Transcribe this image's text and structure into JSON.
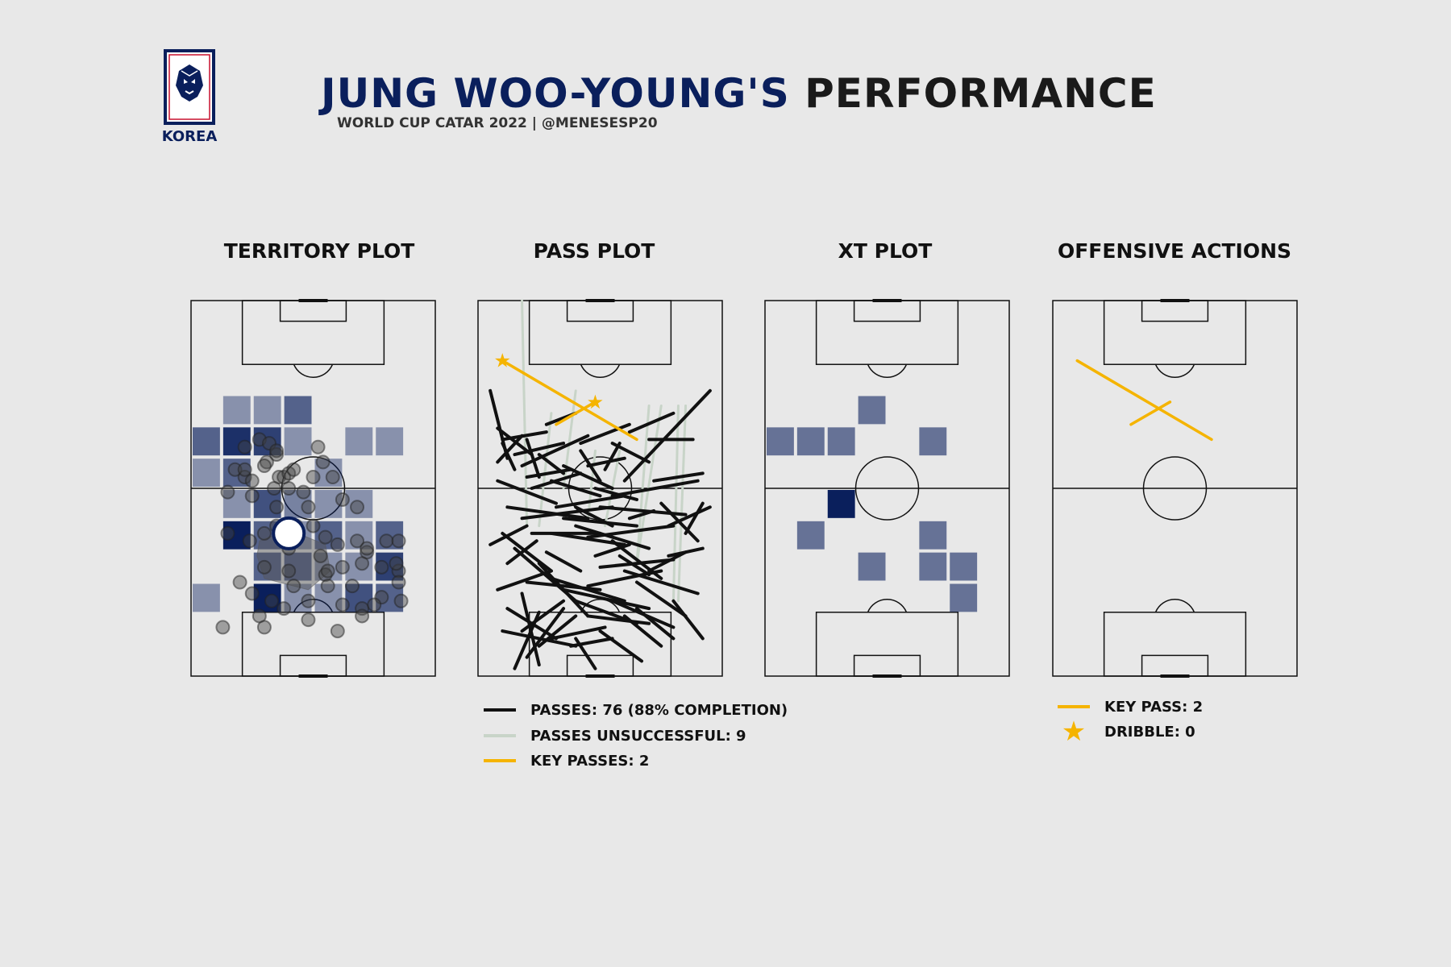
{
  "header": {
    "logo_text": "KOREA",
    "title_name": "JUNG WOO-YOUNG'S",
    "title_rest": "PERFORMANCE",
    "subtitle": "WORLD CUP CATAR 2022 | @MENESESP20"
  },
  "colors": {
    "navy": "#0a1f5c",
    "pass_complete": "#111111",
    "pass_unsuccessful": "#c8d4c8",
    "key_pass": "#f5b400",
    "background": "#e8e8e8"
  },
  "panels": {
    "territory_title": "TERRITORY PLOT",
    "pass_title": "PASS PLOT",
    "xt_title": "XT PLOT",
    "offensive_title": "OFFENSIVE ACTIONS"
  },
  "legend_pass": {
    "passes": "PASSES: 76 (88% COMPLETION)",
    "unsuccessful": "PASSES UNSUCCESSFUL: 9",
    "key_passes": "KEY PASSES: 2"
  },
  "legend_offensive": {
    "key_pass": "KEY PASS: 2",
    "dribble": "DRIBBLE: 0"
  },
  "chart_data": [
    {
      "type": "heatmap",
      "title": "TERRITORY PLOT",
      "grid": "8 cols x 12 rows (attacking toward top)",
      "cells": [
        {
          "col": 1,
          "row": 3,
          "v": 0.3
        },
        {
          "col": 2,
          "row": 3,
          "v": 0.3
        },
        {
          "col": 3,
          "row": 3,
          "v": 0.6
        },
        {
          "col": 0,
          "row": 4,
          "v": 0.6
        },
        {
          "col": 1,
          "row": 4,
          "v": 0.9
        },
        {
          "col": 2,
          "row": 4,
          "v": 0.8
        },
        {
          "col": 3,
          "row": 4,
          "v": 0.3
        },
        {
          "col": 5,
          "row": 4,
          "v": 0.3
        },
        {
          "col": 6,
          "row": 4,
          "v": 0.3
        },
        {
          "col": 0,
          "row": 5,
          "v": 0.3
        },
        {
          "col": 1,
          "row": 5,
          "v": 0.6
        },
        {
          "col": 4,
          "row": 5,
          "v": 0.3
        },
        {
          "col": 1,
          "row": 6,
          "v": 0.3
        },
        {
          "col": 2,
          "row": 6,
          "v": 0.7
        },
        {
          "col": 3,
          "row": 6,
          "v": 0.4
        },
        {
          "col": 4,
          "row": 6,
          "v": 0.3
        },
        {
          "col": 5,
          "row": 6,
          "v": 0.3
        },
        {
          "col": 1,
          "row": 7,
          "v": 1.0
        },
        {
          "col": 2,
          "row": 7,
          "v": 0.6
        },
        {
          "col": 3,
          "row": 7,
          "v": 0.3
        },
        {
          "col": 4,
          "row": 7,
          "v": 0.6
        },
        {
          "col": 5,
          "row": 7,
          "v": 0.3
        },
        {
          "col": 6,
          "row": 7,
          "v": 0.6
        },
        {
          "col": 2,
          "row": 8,
          "v": 0.6
        },
        {
          "col": 3,
          "row": 8,
          "v": 0.6
        },
        {
          "col": 4,
          "row": 8,
          "v": 0.3
        },
        {
          "col": 5,
          "row": 8,
          "v": 0.3
        },
        {
          "col": 6,
          "row": 8,
          "v": 0.8
        },
        {
          "col": 0,
          "row": 9,
          "v": 0.3
        },
        {
          "col": 2,
          "row": 9,
          "v": 1.0
        },
        {
          "col": 3,
          "row": 9,
          "v": 0.3
        },
        {
          "col": 4,
          "row": 9,
          "v": 0.3
        },
        {
          "col": 5,
          "row": 9,
          "v": 0.7
        },
        {
          "col": 6,
          "row": 9,
          "v": 0.6
        }
      ],
      "touches": [
        [
          31,
          43
        ],
        [
          28,
          37
        ],
        [
          22,
          39
        ],
        [
          35,
          41
        ],
        [
          22,
          47
        ],
        [
          32,
          38
        ],
        [
          40,
          50
        ],
        [
          30,
          44
        ],
        [
          18,
          45
        ],
        [
          25,
          48
        ],
        [
          15,
          51
        ],
        [
          22,
          45
        ],
        [
          25,
          52
        ],
        [
          36,
          47
        ],
        [
          62,
          53
        ],
        [
          68,
          55
        ],
        [
          35,
          40
        ],
        [
          38,
          47
        ],
        [
          52,
          39
        ],
        [
          50,
          47
        ],
        [
          58,
          47
        ],
        [
          54,
          43
        ],
        [
          40,
          46
        ],
        [
          34,
          50
        ],
        [
          46,
          51
        ],
        [
          42,
          45
        ],
        [
          48,
          55
        ],
        [
          35,
          55
        ],
        [
          24,
          64
        ],
        [
          30,
          62
        ],
        [
          35,
          60
        ],
        [
          43,
          60
        ],
        [
          50,
          60
        ],
        [
          55,
          63
        ],
        [
          60,
          65
        ],
        [
          68,
          64
        ],
        [
          72,
          67
        ],
        [
          80,
          64
        ],
        [
          62,
          71
        ],
        [
          70,
          70
        ],
        [
          78,
          71
        ],
        [
          85,
          72
        ],
        [
          55,
          73
        ],
        [
          40,
          72
        ],
        [
          25,
          78
        ],
        [
          30,
          71
        ],
        [
          33,
          80
        ],
        [
          42,
          76
        ],
        [
          48,
          80
        ],
        [
          56,
          76
        ],
        [
          62,
          81
        ],
        [
          70,
          82
        ],
        [
          78,
          79
        ],
        [
          86,
          80
        ],
        [
          85,
          64
        ],
        [
          84,
          70
        ],
        [
          15,
          62
        ],
        [
          13,
          87
        ],
        [
          28,
          84
        ],
        [
          30,
          87
        ],
        [
          38,
          82
        ],
        [
          48,
          85
        ],
        [
          60,
          88
        ],
        [
          70,
          84
        ],
        [
          75,
          81
        ],
        [
          85,
          75
        ],
        [
          66,
          76
        ],
        [
          72,
          66
        ],
        [
          53,
          68
        ],
        [
          20,
          75
        ],
        [
          40,
          66
        ],
        [
          56,
          72
        ]
      ],
      "average_position": [
        40,
        62
      ]
    },
    {
      "type": "line",
      "title": "PASS PLOT",
      "series": [
        {
          "name": "PASSES: 76 (88% COMPLETION)",
          "segments": [
            [
              5,
              24,
              12,
              42
            ],
            [
              8,
              34,
              22,
              41
            ],
            [
              10,
              37,
              28,
              35
            ],
            [
              15,
              41,
              35,
              38
            ],
            [
              18,
              44,
              45,
              36
            ],
            [
              20,
              47,
              38,
              45
            ],
            [
              8,
              48,
              32,
              54
            ],
            [
              12,
              55,
              45,
              58
            ],
            [
              18,
              58,
              55,
              55
            ],
            [
              22,
              62,
              50,
              62
            ],
            [
              30,
              62,
              60,
              65
            ],
            [
              35,
              58,
              65,
              60
            ],
            [
              40,
              60,
              70,
              66
            ],
            [
              45,
              63,
              80,
              60
            ],
            [
              50,
              55,
              85,
              57
            ],
            [
              55,
              52,
              90,
              48
            ],
            [
              60,
              48,
              95,
              24
            ],
            [
              10,
              62,
              30,
              72
            ],
            [
              15,
              66,
              40,
              80
            ],
            [
              8,
              77,
              30,
              72
            ],
            [
              20,
              75,
              50,
              77
            ],
            [
              25,
              70,
              45,
              84
            ],
            [
              30,
              74,
              60,
              80
            ],
            [
              35,
              77,
              70,
              82
            ],
            [
              40,
              80,
              65,
              86
            ],
            [
              45,
              76,
              75,
              72
            ],
            [
              50,
              71,
              80,
              69
            ],
            [
              55,
              64,
              75,
              74
            ],
            [
              60,
              72,
              90,
              78
            ],
            [
              65,
              75,
              85,
              84
            ],
            [
              70,
              72,
              85,
              67
            ],
            [
              78,
              60,
              95,
              55
            ],
            [
              18,
              88,
              35,
              80
            ],
            [
              25,
              92,
              40,
              84
            ],
            [
              30,
              90,
              52,
              87
            ],
            [
              38,
              92,
              55,
              90
            ],
            [
              45,
              84,
              70,
              86
            ],
            [
              50,
              88,
              67,
              96
            ],
            [
              55,
              80,
              80,
              87
            ],
            [
              60,
              84,
              75,
              92
            ],
            [
              18,
              78,
              25,
              97
            ],
            [
              25,
              83,
              15,
              98
            ],
            [
              40,
              90,
              48,
              98
            ],
            [
              10,
              88,
              40,
              92
            ],
            [
              12,
              82,
              32,
              90
            ],
            [
              28,
              67,
              42,
              72
            ],
            [
              32,
              55,
              60,
              52
            ],
            [
              35,
              44,
              55,
              50
            ],
            [
              42,
              38,
              62,
              33
            ],
            [
              20,
              37,
              25,
              47
            ],
            [
              28,
              33,
              40,
              30
            ],
            [
              45,
              44,
              60,
              42
            ],
            [
              55,
              38,
              70,
              43
            ],
            [
              62,
              35,
              80,
              30
            ],
            [
              70,
              37,
              88,
              37
            ],
            [
              72,
              48,
              92,
              46
            ],
            [
              75,
              54,
              90,
              64
            ],
            [
              78,
              68,
              92,
              66
            ],
            [
              85,
              62,
              92,
              54
            ],
            [
              80,
              80,
              92,
              90
            ],
            [
              22,
              50,
              42,
              46
            ],
            [
              30,
              48,
              50,
              52
            ],
            [
              40,
              55,
              55,
              60
            ],
            [
              48,
              68,
              62,
              65
            ],
            [
              58,
              68,
              70,
              73
            ],
            [
              65,
              82,
              80,
              90
            ],
            [
              20,
              95,
              35,
              82
            ],
            [
              12,
              70,
              24,
              64
            ],
            [
              5,
              65,
              20,
              60
            ],
            [
              8,
              43,
              18,
              36
            ],
            [
              15,
              45,
              10,
              38
            ],
            [
              25,
              41,
              35,
              46
            ],
            [
              42,
              40,
              50,
              48
            ],
            [
              52,
              45,
              58,
              38
            ],
            [
              48,
              50,
              65,
              53
            ],
            [
              62,
              58,
              72,
              56
            ]
          ]
        },
        {
          "name": "PASSES UNSUCCESSFUL: 9",
          "segments": [
            [
              18,
              0,
              20,
              60
            ],
            [
              30,
              30,
              25,
              60
            ],
            [
              40,
              24,
              35,
              50
            ],
            [
              48,
              40,
              45,
              58
            ],
            [
              58,
              40,
              52,
              60
            ],
            [
              70,
              28,
              65,
              70
            ],
            [
              75,
              28,
              65,
              70
            ],
            [
              82,
              28,
              80,
              80
            ],
            [
              85,
              28,
              82,
              80
            ]
          ]
        },
        {
          "name": "KEY PASSES: 2",
          "segments": [
            [
              10,
              16,
              65,
              37
            ],
            [
              32,
              33,
              48,
              27
            ]
          ],
          "markers": [
            [
              10,
              16
            ],
            [
              48,
              27
            ]
          ]
        }
      ]
    },
    {
      "type": "heatmap",
      "title": "XT PLOT",
      "grid": "8 cols x 12 rows (attacking toward top)",
      "cells": [
        {
          "col": 3,
          "row": 3,
          "v": 0.5
        },
        {
          "col": 0,
          "row": 4,
          "v": 0.5
        },
        {
          "col": 1,
          "row": 4,
          "v": 0.5
        },
        {
          "col": 2,
          "row": 4,
          "v": 0.5
        },
        {
          "col": 5,
          "row": 4,
          "v": 0.5
        },
        {
          "col": 2,
          "row": 6,
          "v": 1.0
        },
        {
          "col": 1,
          "row": 7,
          "v": 0.5
        },
        {
          "col": 5,
          "row": 7,
          "v": 0.5
        },
        {
          "col": 3,
          "row": 8,
          "v": 0.5
        },
        {
          "col": 5,
          "row": 8,
          "v": 0.5
        },
        {
          "col": 6,
          "row": 8,
          "v": 0.5
        },
        {
          "col": 6,
          "row": 9,
          "v": 0.5
        }
      ]
    },
    {
      "type": "line",
      "title": "OFFENSIVE ACTIONS",
      "series": [
        {
          "name": "KEY PASS: 2",
          "segments": [
            [
              10,
              16,
              65,
              37
            ],
            [
              32,
              33,
              48,
              27
            ]
          ]
        },
        {
          "name": "DRIBBLE: 0",
          "segments": []
        }
      ]
    }
  ]
}
